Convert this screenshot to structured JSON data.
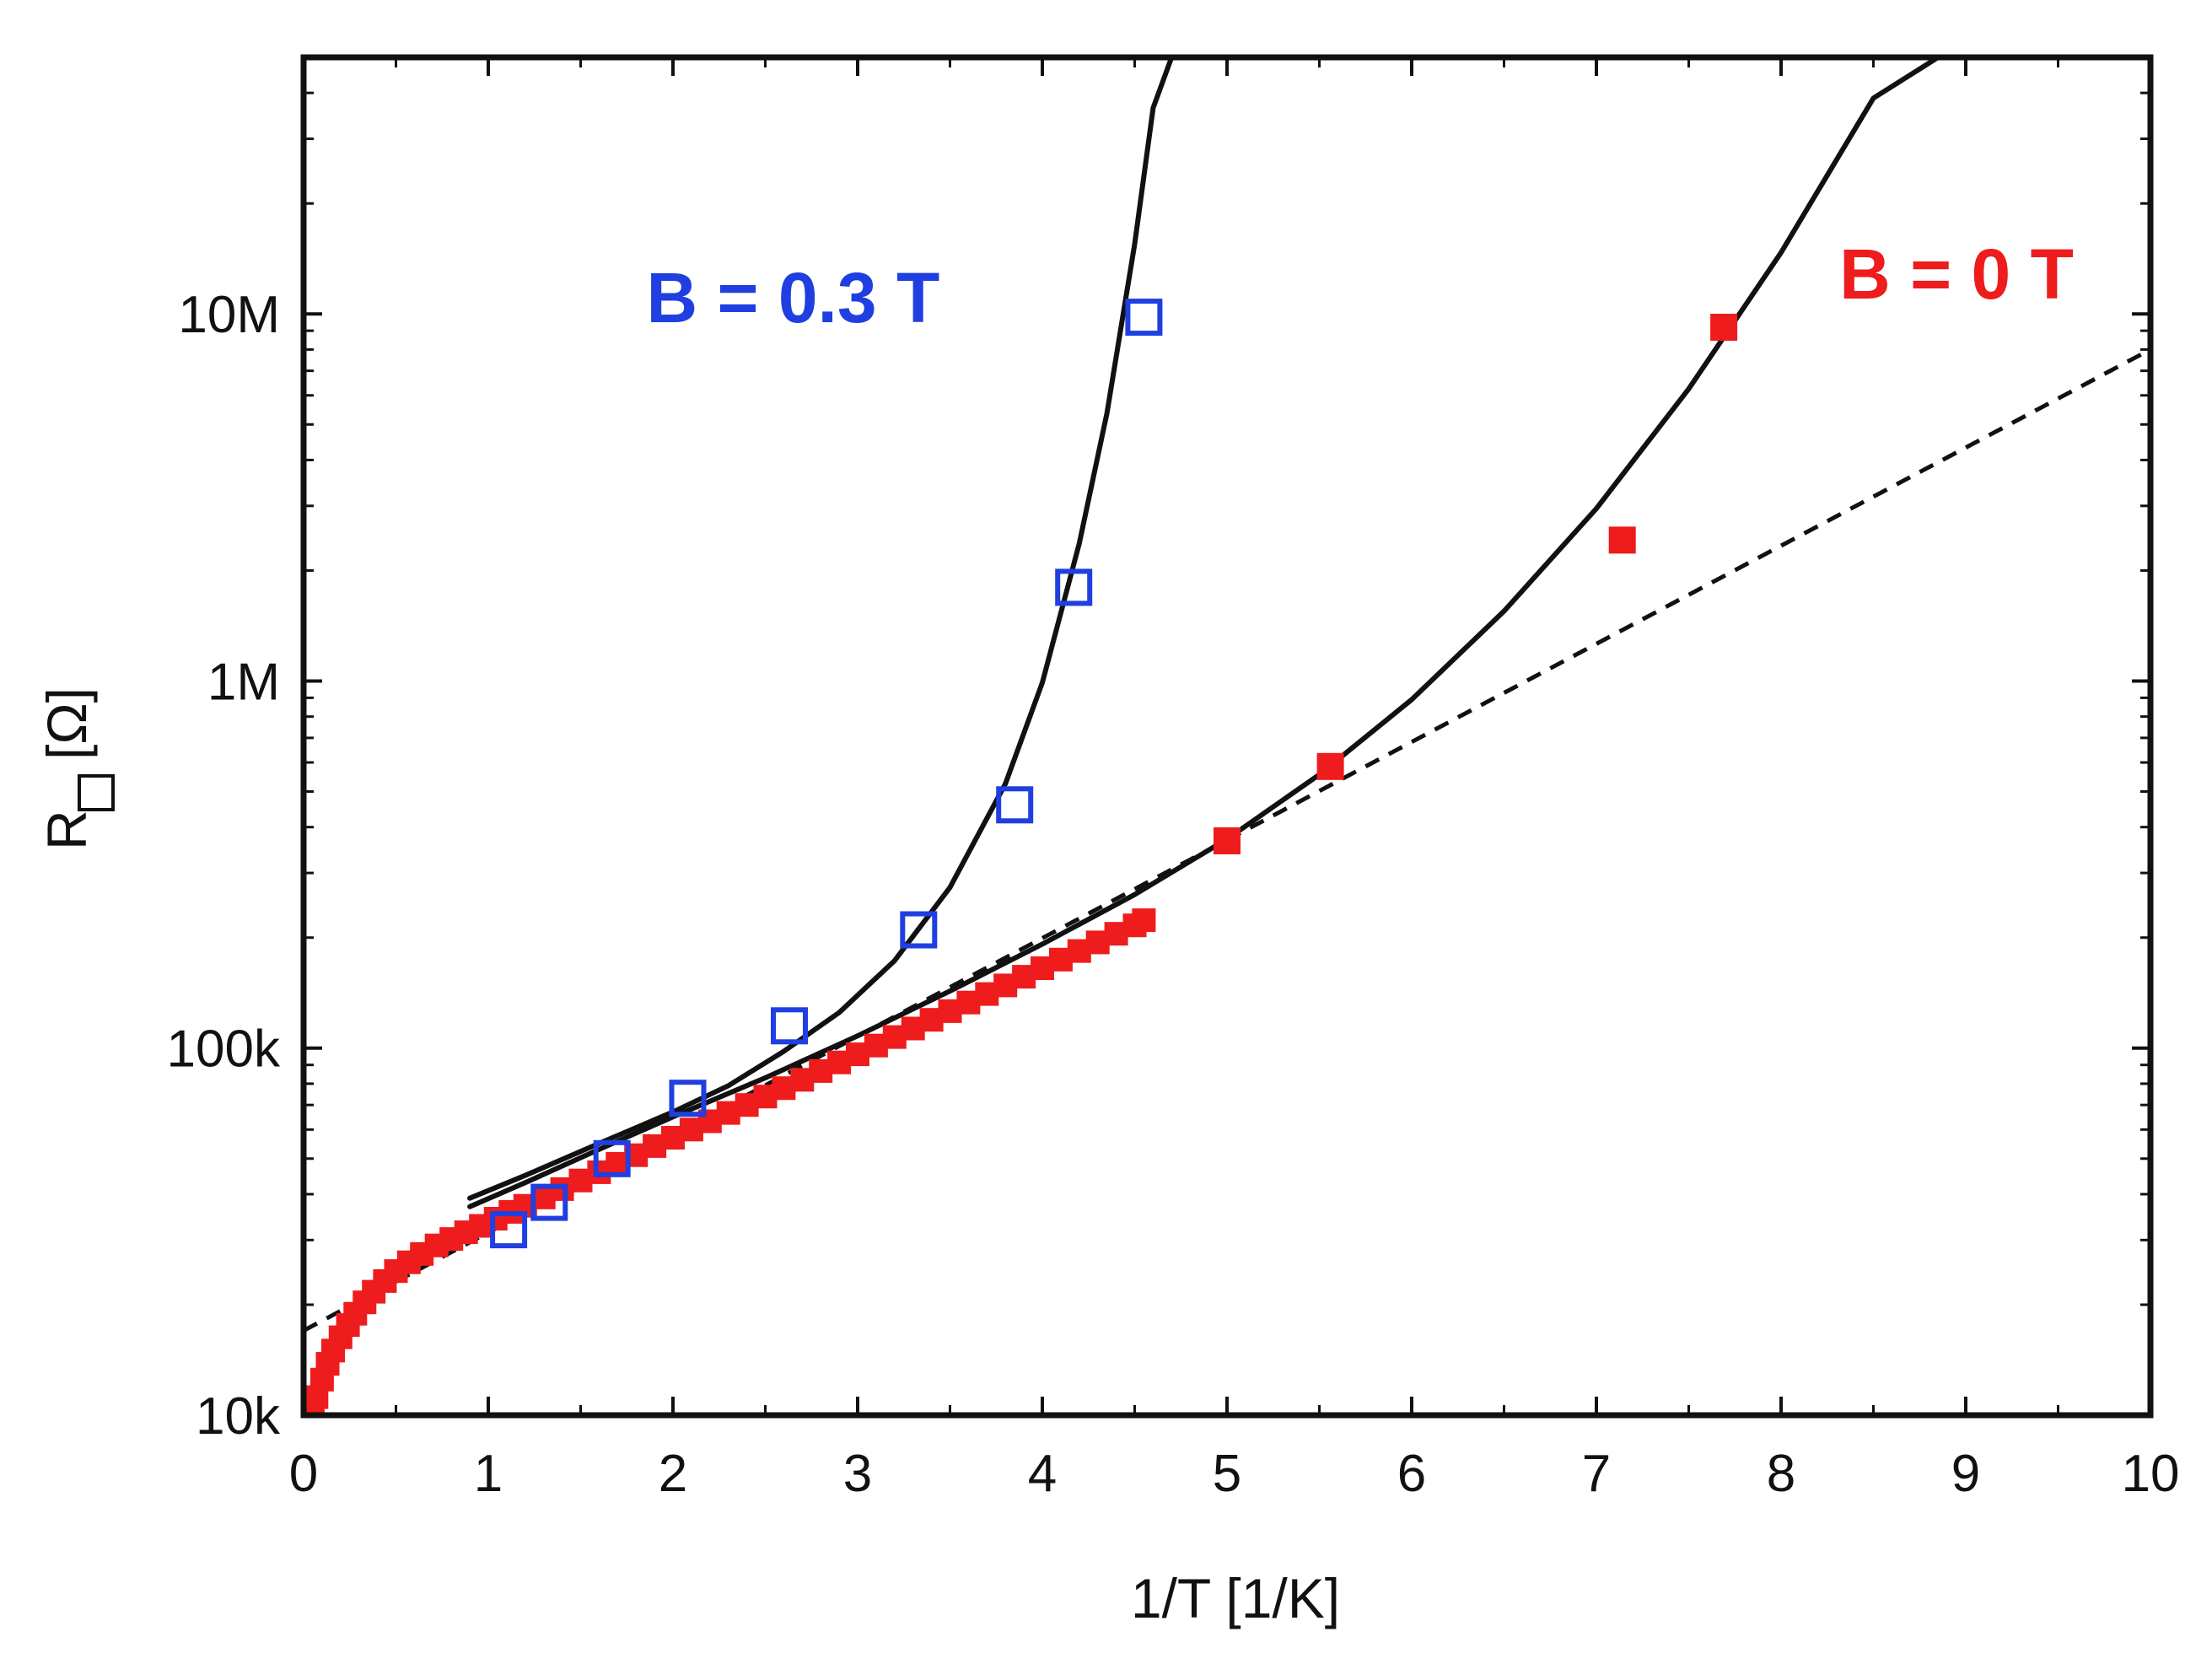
{
  "chart_data": {
    "type": "scatter",
    "title": "",
    "xlabel": "1/T   [1/K]",
    "ylabel": "R",
    "ylabel_unit": "[Ω]",
    "xlim": [
      0,
      10
    ],
    "ylim": [
      10000,
      50000000
    ],
    "yscale": "log",
    "x_ticks": [
      0,
      1,
      2,
      3,
      4,
      5,
      6,
      7,
      8,
      9,
      10
    ],
    "x_tick_labels": [
      "0",
      "1",
      "2",
      "3",
      "4",
      "5",
      "6",
      "7",
      "8",
      "9",
      "10"
    ],
    "y_ticks": [
      10000,
      100000,
      1000000,
      10000000
    ],
    "y_tick_labels": [
      "10k",
      "100k",
      "1M",
      "10M"
    ],
    "grid": false,
    "annotations": [
      {
        "text": "B = 0.3 T",
        "color": "#1f3fe0",
        "x": 2.65,
        "y": 9500000
      },
      {
        "text": "B = 0 T",
        "color": "#ee1c1c",
        "x": 8.95,
        "y": 11000000
      }
    ],
    "series": [
      {
        "name": "B = 0 T",
        "marker": "filled-square",
        "color": "#ee1c1c",
        "x": [
          0.05,
          0.07,
          0.1,
          0.13,
          0.16,
          0.2,
          0.24,
          0.28,
          0.33,
          0.38,
          0.44,
          0.5,
          0.57,
          0.64,
          0.72,
          0.8,
          0.88,
          0.96,
          1.04,
          1.12,
          1.2,
          1.3,
          1.4,
          1.5,
          1.6,
          1.7,
          1.8,
          1.9,
          2.0,
          2.1,
          2.2,
          2.3,
          2.4,
          2.5,
          2.6,
          2.7,
          2.8,
          2.9,
          3.0,
          3.1,
          3.2,
          3.3,
          3.4,
          3.5,
          3.6,
          3.7,
          3.8,
          3.9,
          4.0,
          4.1,
          4.2,
          4.3,
          4.4,
          4.5,
          4.55,
          5.0,
          5.56,
          7.14,
          7.69
        ],
        "values": [
          10200,
          11200,
          12500,
          13800,
          15000,
          16300,
          17600,
          18900,
          20300,
          21700,
          23200,
          24700,
          26100,
          27500,
          29000,
          30200,
          31500,
          32800,
          34300,
          35800,
          37200,
          39200,
          41300,
          43600,
          45900,
          48400,
          51100,
          54100,
          57000,
          60000,
          63200,
          66600,
          70000,
          73800,
          77800,
          82000,
          86600,
          91400,
          96200,
          101600,
          107200,
          113100,
          119400,
          126100,
          133100,
          140400,
          148200,
          156500,
          165100,
          174200,
          183900,
          194100,
          204800,
          216000,
          223000,
          367000,
          585000,
          2420000,
          9200000
        ]
      },
      {
        "name": "B = 0.3 T",
        "marker": "open-square",
        "color": "#1f3fe0",
        "x": [
          1.11,
          1.33,
          1.67,
          2.08,
          2.63,
          3.33,
          3.85,
          4.17,
          4.55
        ],
        "values": [
          32000,
          38000,
          50000,
          73000,
          115000,
          210000,
          460000,
          1800000,
          9800000
        ]
      },
      {
        "name": "fit B = 0 T",
        "style": "solid",
        "color": "#111111",
        "x": [
          0.9,
          1.2,
          1.6,
          2.0,
          2.5,
          3.0,
          3.5,
          4.0,
          4.5,
          5.0,
          5.5,
          6.0,
          6.5,
          7.0,
          7.5,
          8.0,
          8.5,
          8.85
        ],
        "values": [
          37000,
          43000,
          53000,
          65000,
          83000,
          108000,
          143000,
          192000,
          262000,
          371000,
          556000,
          890000,
          1550000,
          2950000,
          6250000,
          14700000,
          38700000,
          50000000
        ]
      },
      {
        "name": "fit B = 0.3 T",
        "style": "solid",
        "color": "#111111",
        "x": [
          0.9,
          1.2,
          1.6,
          2.0,
          2.3,
          2.6,
          2.9,
          3.2,
          3.5,
          3.8,
          4.0,
          4.2,
          4.35,
          4.5,
          4.6,
          4.7
        ],
        "values": [
          39000,
          45000,
          55000,
          67000,
          79000,
          98000,
          125000,
          173000,
          274000,
          525000,
          990000,
          2370000,
          5360000,
          15500000,
          36400000,
          50000000
        ]
      },
      {
        "name": "Arrhenius fit",
        "style": "dashed",
        "color": "#111111",
        "x": [
          0,
          10
        ],
        "values": [
          17000,
          8000000
        ]
      }
    ]
  }
}
